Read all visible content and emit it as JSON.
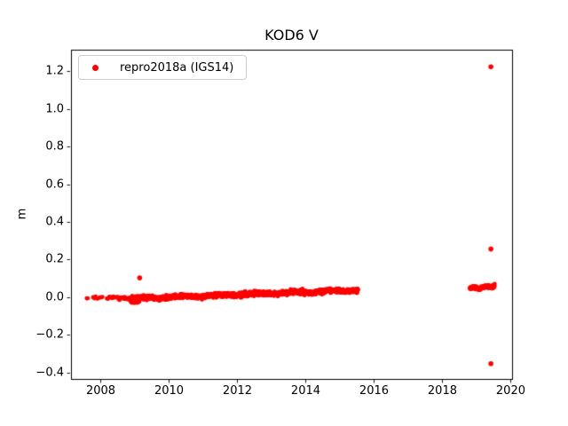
{
  "chart_data": {
    "type": "scatter",
    "title": "KOD6 V",
    "xlabel": "",
    "ylabel": "m",
    "xlim": [
      2007.13,
      2020.04
    ],
    "ylim": [
      -0.433,
      1.313
    ],
    "xticks": [
      2008,
      2010,
      2012,
      2014,
      2016,
      2018,
      2020
    ],
    "xtick_labels": [
      "2008",
      "2010",
      "2012",
      "2014",
      "2016",
      "2018",
      "2020"
    ],
    "yticks": [
      -0.4,
      -0.2,
      0.0,
      0.2,
      0.4,
      0.6,
      0.8,
      1.0,
      1.2
    ],
    "ytick_labels": [
      "−0.4",
      "−0.2",
      "0.0",
      "0.2",
      "0.4",
      "0.6",
      "0.8",
      "1.0",
      "1.2"
    ],
    "grid": false,
    "background_color": "#ffffff",
    "frame_color": "#000000",
    "legend": {
      "position": "upper left",
      "border_color": "#cccccc",
      "entries": [
        {
          "label": "repro2018a (IGS14)",
          "color": "#ff0000",
          "marker": "point"
        }
      ]
    },
    "series": [
      {
        "name": "repro2018a (IGS14)",
        "color": "#ff0000",
        "marker": "point",
        "marker_radius_px": 2.4,
        "point_clusters": [
          {
            "x_start": 2007.59,
            "x_end": 2007.62,
            "n": 2,
            "y_start": 0.0,
            "y_end": 0.0,
            "y_sd": 0.003
          },
          {
            "x_start": 2007.78,
            "x_end": 2008.05,
            "n": 9,
            "y_start": -0.001,
            "y_end": 0.001,
            "y_sd": 0.0045
          },
          {
            "x_start": 2008.18,
            "x_end": 2008.5,
            "n": 11,
            "y_start": -0.003,
            "y_end": 0.001,
            "y_sd": 0.0045
          },
          {
            "x_start": 2008.52,
            "x_end": 2009.0,
            "n": 32,
            "y_start": -0.006,
            "y_end": -0.004,
            "y_sd": 0.005
          },
          {
            "x_start": 2008.88,
            "x_end": 2009.12,
            "n": 10,
            "y_start": -0.03,
            "y_end": -0.018,
            "y_sd": 0.005
          },
          {
            "x_start": 2009.0,
            "x_end": 2015.53,
            "n": 1300,
            "y_start": -0.007,
            "y_end": 0.038,
            "y_sd": 0.0055,
            "wiggle_amp": 0.004,
            "wiggle_cycles": 6
          },
          {
            "x_start": 2018.8,
            "x_end": 2019.53,
            "n": 130,
            "y_start": 0.048,
            "y_end": 0.058,
            "y_sd": 0.005,
            "wiggle_amp": 0.003,
            "wiggle_cycles": 2
          }
        ],
        "outlier_points": [
          [
            2009.14,
            0.103
          ],
          [
            2019.42,
            1.222
          ],
          [
            2019.42,
            0.256
          ],
          [
            2019.42,
            -0.352
          ]
        ]
      }
    ]
  }
}
